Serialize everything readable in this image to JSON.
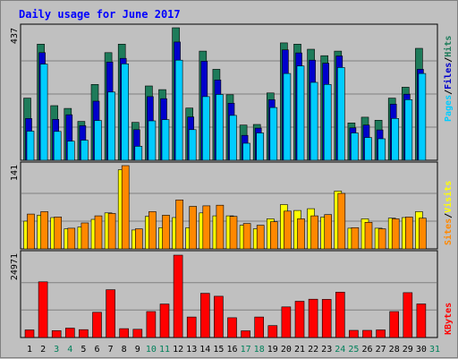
{
  "chart_data": [
    {
      "type": "bar",
      "panel": "hits-files-pages",
      "title": "Daily usage for June 2017",
      "ymax_label": "437",
      "ylim": [
        0,
        437
      ],
      "legend": [
        "Pages",
        "Files",
        "Hits"
      ],
      "legend_placement": "right",
      "categories": [
        "1",
        "2",
        "3",
        "4",
        "5",
        "6",
        "7",
        "8",
        "9",
        "10",
        "11",
        "12",
        "13",
        "14",
        "15",
        "16",
        "17",
        "18",
        "19",
        "20",
        "21",
        "22",
        "23",
        "24",
        "25",
        "26",
        "27",
        "28",
        "29",
        "30",
        "31"
      ],
      "series": [
        {
          "name": "Hits",
          "color": "#1e7b5a",
          "values": [
            205,
            383,
            180,
            171,
            128,
            250,
            355,
            383,
            125,
            245,
            233,
            437,
            172,
            360,
            300,
            216,
            116,
            118,
            222,
            387,
            383,
            366,
            345,
            360,
            123,
            142,
            132,
            205,
            241,
            369,
            0
          ]
        },
        {
          "name": "Files",
          "color": "#0000cc",
          "values": [
            138,
            355,
            135,
            150,
            114,
            195,
            324,
            336,
            101,
            210,
            203,
            390,
            143,
            327,
            265,
            188,
            82,
            106,
            200,
            364,
            354,
            330,
            320,
            344,
            107,
            116,
            100,
            185,
            218,
            300,
            0
          ]
        },
        {
          "name": "Pages",
          "color": "#00ccff",
          "values": [
            96,
            317,
            95,
            63,
            66,
            131,
            225,
            318,
            46,
            130,
            134,
            330,
            101,
            210,
            217,
            148,
            56,
            90,
            174,
            286,
            311,
            257,
            250,
            306,
            90,
            75,
            71,
            138,
            200,
            286,
            0
          ]
        }
      ]
    },
    {
      "type": "bar",
      "panel": "visits-sites",
      "ymax_label": "141",
      "ylim": [
        0,
        141
      ],
      "legend": [
        "Sites",
        "Visits"
      ],
      "legend_placement": "right",
      "categories": [
        "1",
        "2",
        "3",
        "4",
        "5",
        "6",
        "7",
        "8",
        "9",
        "10",
        "11",
        "12",
        "13",
        "14",
        "15",
        "16",
        "17",
        "18",
        "19",
        "20",
        "21",
        "22",
        "23",
        "24",
        "25",
        "26",
        "27",
        "28",
        "29",
        "30",
        "31"
      ],
      "series": [
        {
          "name": "Visits",
          "color": "#ffff00",
          "values": [
            47,
            57,
            53,
            34,
            37,
            50,
            61,
            134,
            32,
            55,
            36,
            53,
            36,
            61,
            56,
            56,
            40,
            34,
            51,
            75,
            65,
            68,
            54,
            98,
            35,
            51,
            35,
            52,
            53,
            63,
            0
          ]
        },
        {
          "name": "Sites",
          "color": "#ff8800",
          "values": [
            59,
            63,
            54,
            35,
            44,
            56,
            60,
            141,
            34,
            63,
            57,
            83,
            72,
            73,
            74,
            55,
            43,
            40,
            46,
            64,
            51,
            56,
            58,
            94,
            36,
            45,
            34,
            51,
            54,
            52,
            0
          ]
        }
      ]
    },
    {
      "type": "bar",
      "panel": "kbytes",
      "ymax_label": "24971",
      "ylim": [
        0,
        24971
      ],
      "legend": [
        "KBytes"
      ],
      "legend_placement": "right",
      "categories": [
        "1",
        "2",
        "3",
        "4",
        "5",
        "6",
        "7",
        "8",
        "9",
        "10",
        "11",
        "12",
        "13",
        "14",
        "15",
        "16",
        "17",
        "18",
        "19",
        "20",
        "21",
        "22",
        "23",
        "24",
        "25",
        "26",
        "27",
        "28",
        "29",
        "30",
        "31"
      ],
      "series": [
        {
          "name": "KBytes",
          "color": "#ff0000",
          "values": [
            2300,
            16890,
            2100,
            2850,
            2400,
            7650,
            14490,
            2700,
            2500,
            7875,
            10140,
            24971,
            6210,
            13410,
            12510,
            5985,
            2025,
            6210,
            3600,
            9270,
            10980,
            11610,
            11565,
            13770,
            2160,
            2160,
            2295,
            7875,
            13590,
            10170,
            0
          ]
        }
      ]
    }
  ],
  "x_axis": {
    "labels": [
      "1",
      "2",
      "3",
      "4",
      "5",
      "6",
      "7",
      "8",
      "9",
      "10",
      "11",
      "12",
      "13",
      "14",
      "15",
      "16",
      "17",
      "18",
      "19",
      "20",
      "21",
      "22",
      "23",
      "24",
      "25",
      "26",
      "27",
      "28",
      "29",
      "30",
      "31"
    ],
    "weekend_days": [
      "3",
      "4",
      "10",
      "11",
      "17",
      "18",
      "24",
      "25",
      "31"
    ],
    "weekday_color": "#000000",
    "weekend_color": "#00805a"
  },
  "legend_text": {
    "pages": "Pages",
    "files": "Files",
    "hits": "Hits",
    "sep": "/",
    "sites": "Sites",
    "visits": "Visits",
    "kbytes": "KBytes"
  },
  "colors": {
    "background": "#c0c0c0",
    "title": "#0000ff",
    "gridline": "#808080"
  }
}
